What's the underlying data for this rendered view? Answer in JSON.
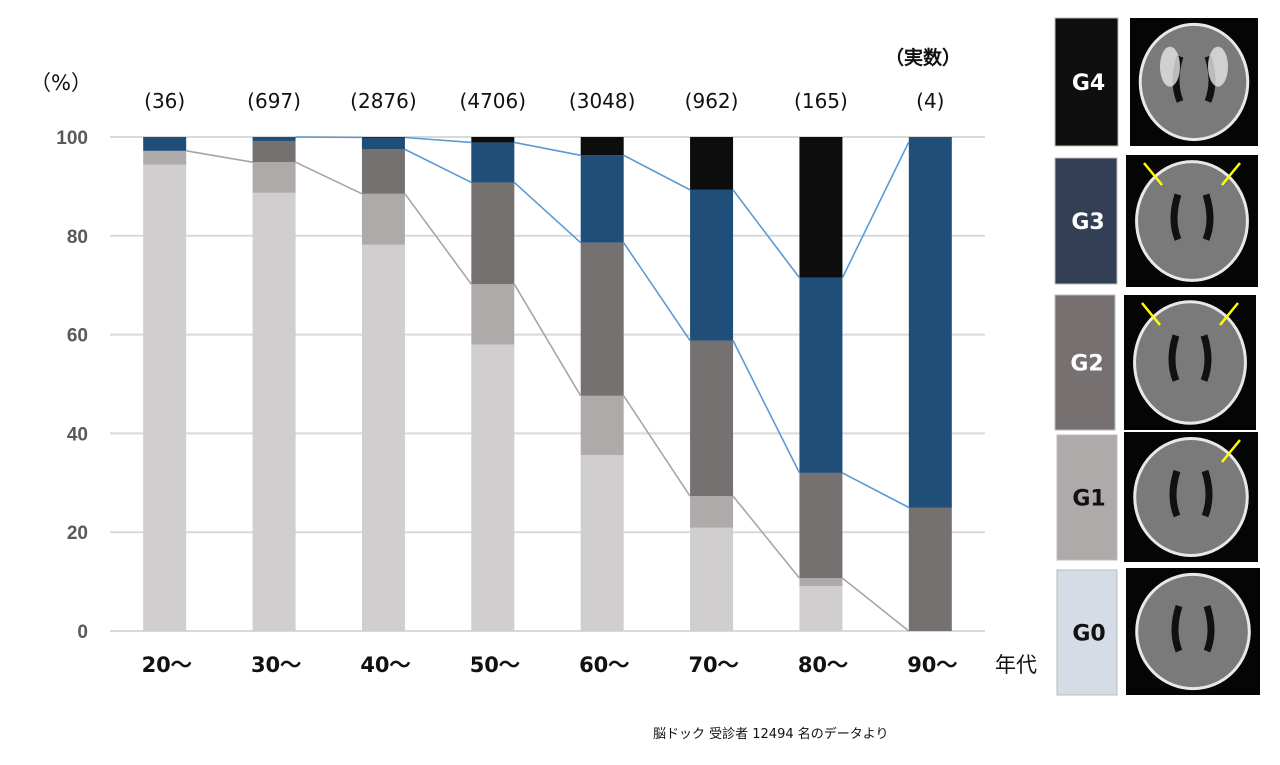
{
  "chart_data": {
    "type": "bar",
    "stacked": true,
    "title": "",
    "ylabel": "（%）",
    "xlabel": "年代",
    "ylim": [
      0,
      100
    ],
    "yticks": [
      0,
      20,
      40,
      60,
      80,
      100
    ],
    "grid": true,
    "categories": [
      "20〜",
      "30〜",
      "40〜",
      "50〜",
      "60〜",
      "70〜",
      "80〜",
      "90〜"
    ],
    "counts_header": "（実数）",
    "counts": [
      "(36)",
      "(697)",
      "(2876)",
      "(4706)",
      "(3048)",
      "(962)",
      "(165)",
      "(4)"
    ],
    "series": [
      {
        "name": "G0",
        "color": "#d0cece",
        "values": [
          94.4,
          88.7,
          78.2,
          58.0,
          35.6,
          20.9,
          9.1,
          0
        ]
      },
      {
        "name": "G1",
        "color": "#aeaaaa",
        "values": [
          2.8,
          6.2,
          10.3,
          12.2,
          12.0,
          6.4,
          1.6,
          0
        ]
      },
      {
        "name": "G2",
        "color": "#767171",
        "values": [
          0,
          4.3,
          9.0,
          20.6,
          31.0,
          31.5,
          21.3,
          25
        ]
      },
      {
        "name": "G3",
        "color": "#1f4e79",
        "values": [
          2.8,
          0.8,
          2.4,
          8.1,
          17.7,
          30.5,
          39.5,
          75
        ]
      },
      {
        "name": "G4",
        "color": "#0d0d0d",
        "values": [
          0,
          0,
          0.1,
          1.1,
          3.7,
          10.7,
          28.5,
          0
        ]
      }
    ],
    "note": "脳ドック 受診者 12494 名のデータより"
  },
  "legend": [
    {
      "label": "G4",
      "color": "#0f0f0f",
      "text_color": "#ffffff"
    },
    {
      "label": "G3",
      "color": "#323f55",
      "text_color": "#ffffff"
    },
    {
      "label": "G2",
      "color": "#767170",
      "text_color": "#ffffff"
    },
    {
      "label": "G1",
      "color": "#aeaaa9",
      "text_color": "#111111"
    },
    {
      "label": "G0",
      "color": "#d6dce5",
      "text_color": "#111111"
    }
  ]
}
